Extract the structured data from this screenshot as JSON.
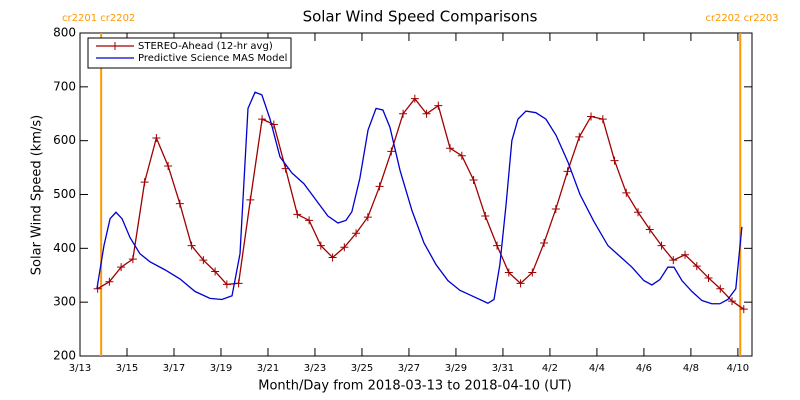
{
  "chart_data": {
    "type": "line",
    "title": "Solar Wind Speed Comparisons",
    "xlabel": "Month/Day from 2018-03-13 to 2018-04-10 (UT)",
    "ylabel": "Solar Wind Speed (km/s)",
    "xlim": [
      0,
      28.6
    ],
    "ylim": [
      200,
      800
    ],
    "yticks": [
      200,
      300,
      400,
      500,
      600,
      700,
      800
    ],
    "xticks": [
      {
        "value": 0,
        "label": "3/13"
      },
      {
        "value": 2,
        "label": "3/15"
      },
      {
        "value": 4,
        "label": "3/17"
      },
      {
        "value": 6,
        "label": "3/19"
      },
      {
        "value": 8,
        "label": "3/21"
      },
      {
        "value": 10,
        "label": "3/23"
      },
      {
        "value": 12,
        "label": "3/25"
      },
      {
        "value": 14,
        "label": "3/27"
      },
      {
        "value": 16,
        "label": "3/29"
      },
      {
        "value": 18,
        "label": "3/31"
      },
      {
        "value": 20,
        "label": "4/2"
      },
      {
        "value": 22,
        "label": "4/4"
      },
      {
        "value": 24,
        "label": "4/6"
      },
      {
        "value": 26,
        "label": "4/8"
      },
      {
        "value": 28,
        "label": "4/10"
      }
    ],
    "vlines": [
      {
        "x": 0.9,
        "label": "cr2201 cr2202",
        "color": "#ff9900"
      },
      {
        "x": 28.1,
        "label": "cr2202 cr2203",
        "color": "#ff9900"
      }
    ],
    "series": [
      {
        "name": "STEREO-Ahead (12-hr avg)",
        "color": "#a00000",
        "marker": "plus",
        "x": [
          0.75,
          1.25,
          1.75,
          2.25,
          2.75,
          3.25,
          3.75,
          4.25,
          4.75,
          5.25,
          5.75,
          6.25,
          6.75,
          7.25,
          7.75,
          8.25,
          8.75,
          9.25,
          9.75,
          10.25,
          10.75,
          11.25,
          11.75,
          12.25,
          12.75,
          13.25,
          13.75,
          14.25,
          14.75,
          15.25,
          15.75,
          16.25,
          16.75,
          17.25,
          17.75,
          18.25,
          18.75,
          19.25,
          19.75,
          20.25,
          20.75,
          21.25,
          21.75,
          22.25,
          22.75,
          23.25,
          23.75,
          24.25,
          24.75,
          25.25,
          25.75,
          26.25,
          26.75,
          27.25,
          27.75,
          28.25
        ],
        "values": [
          325,
          338,
          365,
          380,
          523,
          605,
          553,
          483,
          405,
          378,
          357,
          333,
          335,
          490,
          640,
          630,
          548,
          463,
          452,
          405,
          383,
          402,
          428,
          458,
          515,
          580,
          650,
          678,
          650,
          665,
          586,
          572,
          527,
          460,
          405,
          355,
          335,
          355,
          410,
          473,
          543,
          607,
          645,
          640,
          563,
          503,
          467,
          435,
          405,
          378,
          388,
          367,
          345,
          325,
          302,
          287
        ]
      },
      {
        "name": "Predictive Science MAS Model",
        "color": "#0000d0",
        "marker": "none",
        "x": [
          0.72,
          1.02,
          1.28,
          1.53,
          1.79,
          2.13,
          2.55,
          2.98,
          3.62,
          4.26,
          4.89,
          5.53,
          6.04,
          6.47,
          6.81,
          7.15,
          7.45,
          7.74,
          8.09,
          8.51,
          9.02,
          9.53,
          10.04,
          10.55,
          10.98,
          11.32,
          11.57,
          11.91,
          12.26,
          12.6,
          12.89,
          13.19,
          13.62,
          14.13,
          14.64,
          15.15,
          15.66,
          16.17,
          16.77,
          17.36,
          17.62,
          17.87,
          18.13,
          18.38,
          18.64,
          18.98,
          19.4,
          19.83,
          20.26,
          20.77,
          21.28,
          21.87,
          22.47,
          22.98,
          23.49,
          24,
          24.34,
          24.68,
          25.02,
          25.28,
          25.62,
          26.04,
          26.47,
          26.89,
          27.23,
          27.57,
          27.91,
          28.17
        ],
        "values": [
          325,
          405,
          455,
          467,
          455,
          420,
          390,
          375,
          360,
          343,
          320,
          307,
          305,
          312,
          390,
          660,
          690,
          685,
          640,
          570,
          540,
          520,
          490,
          460,
          447,
          452,
          468,
          530,
          620,
          660,
          657,
          625,
          545,
          470,
          410,
          370,
          340,
          322,
          310,
          298,
          305,
          370,
          480,
          600,
          640,
          655,
          652,
          640,
          610,
          560,
          500,
          450,
          405,
          385,
          365,
          340,
          332,
          342,
          365,
          365,
          340,
          320,
          303,
          297,
          297,
          305,
          325,
          440
        ]
      }
    ]
  }
}
